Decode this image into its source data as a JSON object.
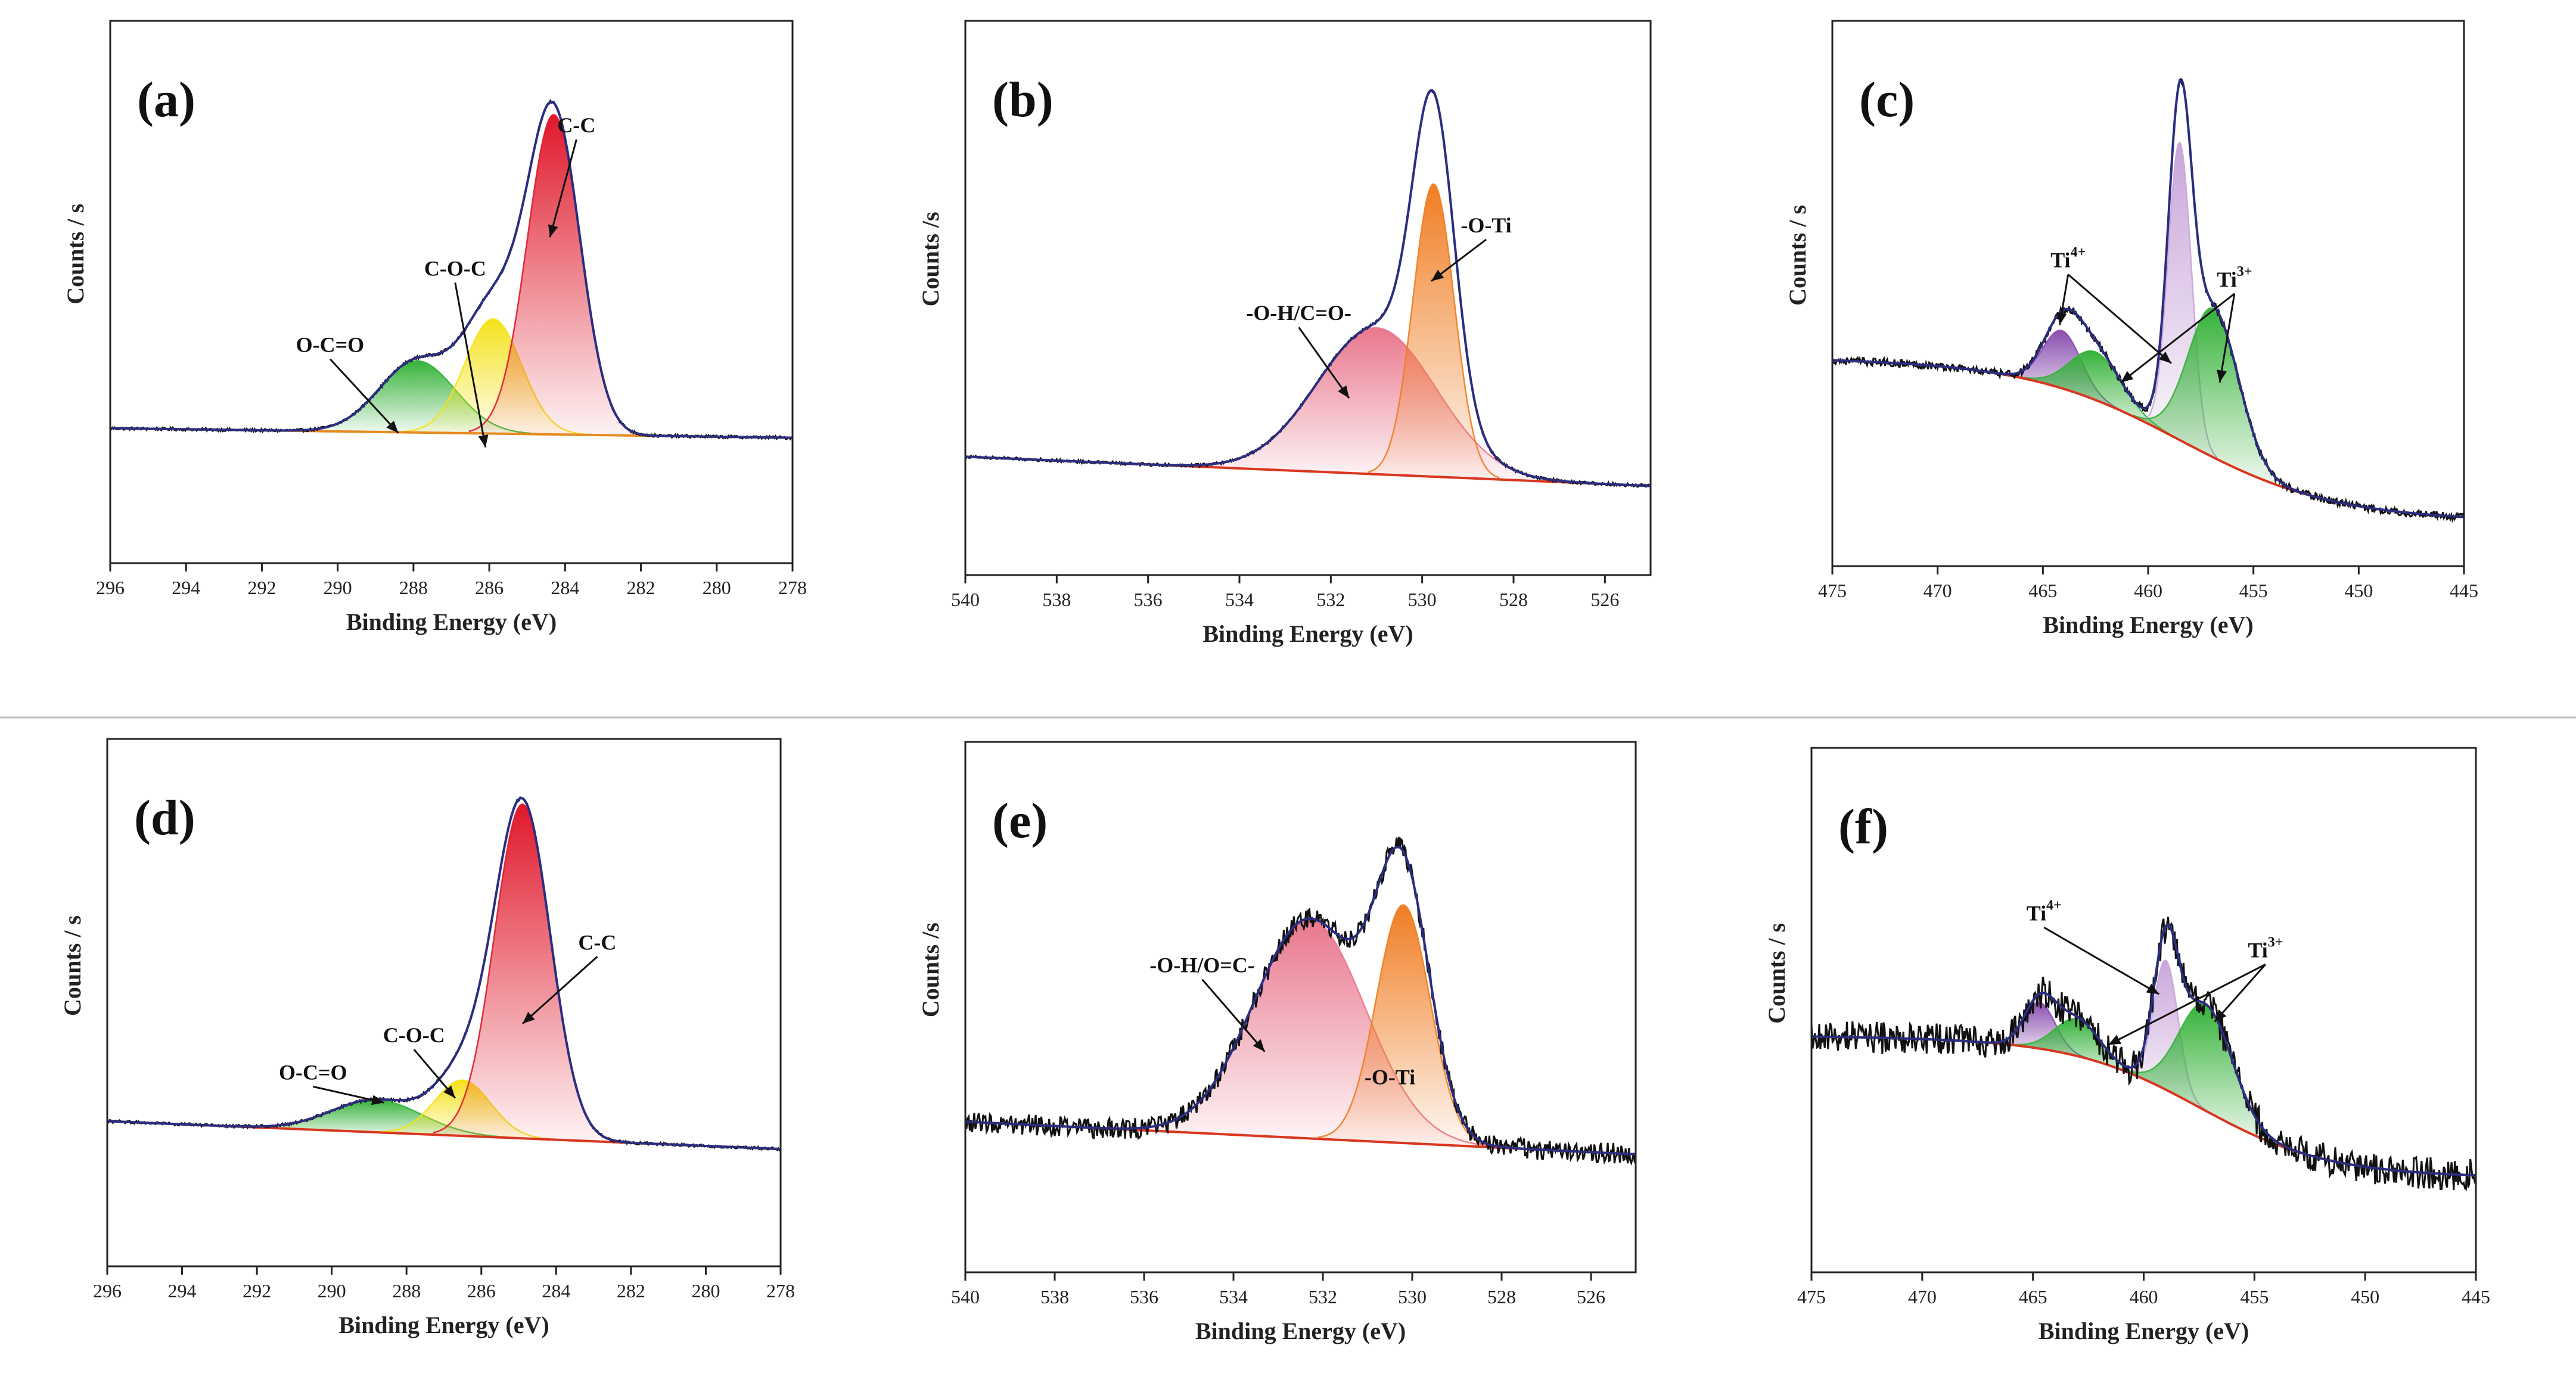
{
  "figure": {
    "description_labels": [
      "(a)",
      "(b)",
      "(c)",
      "(d)",
      "(e)",
      "(f)"
    ],
    "colors": {
      "envelope": "#2b2d80",
      "raw": "#111111",
      "background": "#d9361f",
      "baseline_orange": "#e8891f",
      "red": "#e0182b",
      "yellow": "#f4e21a",
      "green": "#36b23a",
      "orange": "#f07d22",
      "pink": "#e9778d",
      "violet": "#8a4fb0",
      "lilac": "#c9a6da",
      "divider": "#bdbdbd"
    }
  },
  "chart_data": [
    {
      "id": "a",
      "label": "(a)",
      "type": "line",
      "xlabel": "Binding Energy (eV)",
      "ylabel": "Counts / s",
      "xlim": [
        296,
        278
      ],
      "ylim": [
        0,
        100
      ],
      "xticks": [
        "296",
        "294",
        "292",
        "290",
        "288",
        "286",
        "284",
        "282",
        "280",
        "278"
      ],
      "background": {
        "type": "linear",
        "x": [
          296,
          278
        ],
        "y": [
          26,
          24
        ]
      },
      "bg_color": "#e8891f",
      "noise": 0.3,
      "peaks": [
        {
          "name": "O-C=O",
          "center": 287.9,
          "height": 15,
          "width": 1.0,
          "color": "#36b23a"
        },
        {
          "name": "C-O-C",
          "center": 285.9,
          "height": 24,
          "width": 0.75,
          "color": "#f4e21a"
        },
        {
          "name": "C-C",
          "center": 284.3,
          "height": 67,
          "width": 0.7,
          "color": "#e0182b"
        }
      ],
      "annotations": [
        {
          "text": "C-C",
          "x": 283.7,
          "y": 88,
          "arrow_to": [
            284.4,
            66
          ]
        },
        {
          "text": "C-O-C",
          "x": 286.9,
          "y": 58,
          "arrow_to": [
            286.1,
            22
          ]
        },
        {
          "text": "O-C=O",
          "x": 290.2,
          "y": 42,
          "arrow_to": [
            288.4,
            25
          ]
        }
      ]
    },
    {
      "id": "b",
      "label": "(b)",
      "type": "line",
      "xlabel": "Binding Energy (eV)",
      "ylabel": "Counts /s",
      "xlim": [
        540,
        525
      ],
      "ylim": [
        0,
        100
      ],
      "xticks": [
        "540",
        "538",
        "536",
        "534",
        "532",
        "530",
        "528",
        "526"
      ],
      "background": {
        "type": "linear",
        "x": [
          540,
          525
        ],
        "y": [
          22,
          16
        ]
      },
      "bg_color": "#d9361f",
      "noise": 0.3,
      "peaks": [
        {
          "name": "-O-H/C=O-",
          "center": 531.0,
          "height": 30,
          "width": 1.3,
          "color": "#e9778d"
        },
        {
          "name": "-O-Ti",
          "center": 529.75,
          "height": 60,
          "width": 0.45,
          "color": "#f07d22"
        }
      ],
      "annotations": [
        {
          "text": "-O-Ti",
          "x": 528.6,
          "y": 68,
          "arrow_to": [
            529.8,
            58
          ]
        },
        {
          "text": "-O-H/C=O-",
          "x": 532.7,
          "y": 50,
          "arrow_to": [
            531.6,
            34
          ]
        }
      ]
    },
    {
      "id": "c",
      "label": "(c)",
      "type": "line",
      "xlabel": "Binding Energy (eV)",
      "ylabel": "Counts / s",
      "xlim": [
        475,
        445
      ],
      "ylim": [
        0,
        100
      ],
      "xticks": [
        "475",
        "470",
        "465",
        "460",
        "455",
        "450",
        "445"
      ],
      "background": {
        "type": "sigmoid",
        "y_high": 40,
        "y_low": 8,
        "center": 458.5,
        "slope": 0.28,
        "tilt": 0.28
      },
      "bg_color": "#d9361f",
      "noise": 0.8,
      "peaks": [
        {
          "name": "Ti4+",
          "center": 464.1,
          "height": 12,
          "width": 0.9,
          "color": "#8a4fb0"
        },
        {
          "name": "Ti3+",
          "center": 462.5,
          "height": 10,
          "width": 1.2,
          "color": "#36b23a"
        },
        {
          "name": "Ti4+",
          "center": 458.5,
          "height": 62,
          "width": 0.55,
          "color": "#c9a6da"
        },
        {
          "name": "Ti3+",
          "center": 456.9,
          "height": 31,
          "width": 1.2,
          "color": "#36b23a"
        }
      ],
      "annotations": [
        {
          "text": "Ti",
          "sup": "4+",
          "x": 463.8,
          "y": 60,
          "arrow_to": [
            464.2,
            48
          ],
          "arrow_to2": [
            458.9,
            40
          ]
        },
        {
          "text": "Ti",
          "sup": "3+",
          "x": 455.9,
          "y": 56,
          "arrow_to": [
            461.3,
            36
          ],
          "arrow_to2": [
            456.6,
            36
          ]
        }
      ]
    },
    {
      "id": "d",
      "label": "(d)",
      "type": "line",
      "xlabel": "Binding Energy (eV)",
      "ylabel": "Counts / s",
      "xlim": [
        296,
        278
      ],
      "ylim": [
        0,
        100
      ],
      "xticks": [
        "296",
        "294",
        "292",
        "290",
        "288",
        "286",
        "284",
        "282",
        "280",
        "278"
      ],
      "background": {
        "type": "linear",
        "x": [
          296,
          278
        ],
        "y": [
          29,
          23
        ]
      },
      "bg_color": "#d9361f",
      "noise": 0.3,
      "peaks": [
        {
          "name": "O-C=O",
          "center": 288.8,
          "height": 7,
          "width": 1.2,
          "color": "#36b23a"
        },
        {
          "name": "C-O-C",
          "center": 286.5,
          "height": 12,
          "width": 0.75,
          "color": "#f4e21a"
        },
        {
          "name": "C-C",
          "center": 284.9,
          "height": 72,
          "width": 0.75,
          "color": "#e0182b"
        }
      ],
      "annotations": [
        {
          "text": "C-C",
          "x": 282.9,
          "y": 66,
          "arrow_to": [
            284.9,
            50
          ]
        },
        {
          "text": "C-O-C",
          "x": 287.8,
          "y": 46,
          "arrow_to": [
            286.7,
            34
          ]
        },
        {
          "text": "O-C=O",
          "x": 290.5,
          "y": 38,
          "arrow_to": [
            288.6,
            33
          ]
        }
      ]
    },
    {
      "id": "e",
      "label": "(e)",
      "type": "line",
      "xlabel": "Binding Energy (eV)",
      "ylabel": "Counts /s",
      "xlim": [
        540,
        525
      ],
      "ylim": [
        0,
        100
      ],
      "xticks": [
        "540",
        "538",
        "536",
        "534",
        "532",
        "530",
        "528",
        "526"
      ],
      "background": {
        "type": "linear",
        "x": [
          540,
          525
        ],
        "y": [
          30,
          23
        ]
      },
      "bg_color": "#d9361f",
      "noise": 2.2,
      "peaks": [
        {
          "name": "-O-H/O=C-",
          "center": 532.3,
          "height": 47,
          "width": 1.25,
          "color": "#e9778d"
        },
        {
          "name": "-O-Ti",
          "center": 530.2,
          "height": 51,
          "width": 0.6,
          "color": "#f07d22"
        }
      ],
      "annotations": [
        {
          "text": "-O-H/O=C-",
          "x": 534.7,
          "y": 62,
          "arrow_to": [
            533.3,
            45
          ]
        },
        {
          "text": "-O-Ti",
          "x": 530.5,
          "y": 38,
          "arrow_to": null
        }
      ]
    },
    {
      "id": "f",
      "label": "(f)",
      "type": "line",
      "xlabel": "Binding Energy (eV)",
      "ylabel": "Counts / s",
      "xlim": [
        475,
        445
      ],
      "ylim": [
        0,
        100
      ],
      "xticks": [
        "475",
        "470",
        "465",
        "460",
        "455",
        "450",
        "445"
      ],
      "background": {
        "type": "sigmoid",
        "y_high": 48,
        "y_low": 19,
        "center": 457.5,
        "slope": 0.35,
        "tilt": 0.25
      },
      "bg_color": "#d9361f",
      "noise": 3.5,
      "peaks": [
        {
          "name": "Ti4+",
          "center": 464.7,
          "height": 10,
          "width": 0.7,
          "color": "#8a4fb0"
        },
        {
          "name": "Ti3+",
          "center": 463.0,
          "height": 8,
          "width": 1.0,
          "color": "#36b23a"
        },
        {
          "name": "Ti4+",
          "center": 459.0,
          "height": 28,
          "width": 0.55,
          "color": "#c9a6da"
        },
        {
          "name": "Ti3+",
          "center": 457.2,
          "height": 23,
          "width": 1.2,
          "color": "#36b23a"
        }
      ],
      "annotations": [
        {
          "text": "Ti",
          "sup": "4+",
          "x": 464.5,
          "y": 74,
          "arrow_to": [
            459.3,
            58
          ],
          "arrow_to2": null
        },
        {
          "text": "Ti",
          "sup": "3+",
          "x": 454.5,
          "y": 66,
          "arrow_to": [
            461.6,
            47
          ],
          "arrow_to2": [
            456.8,
            52
          ]
        }
      ]
    }
  ]
}
